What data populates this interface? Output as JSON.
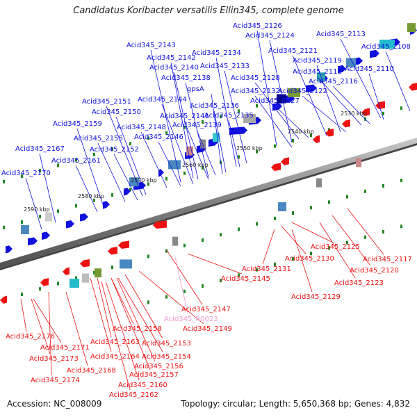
{
  "title": "Candidatus Koribacter versatilis Ellin345, complete genome",
  "footer": {
    "accession": "Accession: NC_008009",
    "topology": "Topology: circular; Length: 5,650,368 bp; Genes: 4,832"
  },
  "colors": {
    "forward_gene": "#1010dd",
    "reverse_gene": "#ee1111",
    "rna": "#ee99cc",
    "backbone": "#808080"
  },
  "kbp_ticks": [
    "2530 kbp",
    "2540 kbp",
    "2550 kbp",
    "2560 kbp",
    "2570 kbp",
    "2580 kbp",
    "2590 kbp"
  ],
  "forward_labels": [
    "Acid345_2126",
    "Acid345_2124",
    "Acid345_2113",
    "Acid345_2108",
    "Acid345_2121",
    "Acid345_2119",
    "Acid345_2110",
    "Acid345_2118",
    "Acid345_2116",
    "Acid345_2122",
    "Acid345_2127",
    "Acid345_2128",
    "Acid345_2132",
    "Acid345_2133",
    "Acid345_2134",
    "Acid345_2143",
    "Acid345_2142",
    "Acid345_2140",
    "Acid345_2138",
    "gpsA",
    "Acid345_2144",
    "Acid345_2136",
    "Acid345_2141",
    "Acid345_2135",
    "Acid345_2139",
    "Acid345_2151",
    "Acid345_2150",
    "Acid345_2148",
    "Acid345_2146",
    "Acid345_2159",
    "Acid345_2155",
    "Acid345_2152",
    "Acid345_2167",
    "Acid345_2161",
    "Acid345_2170"
  ],
  "reverse_labels": [
    "Acid345_2125",
    "Acid345_2117",
    "Acid345_2120",
    "Acid345_2123",
    "Acid345_2130",
    "Acid345_2131",
    "Acid345_2129",
    "Acid345_2145",
    "Acid345_2147",
    "Acid345_2149",
    "Acid345_2158",
    "Acid345_2153",
    "Acid345_2163",
    "Acid345_2154",
    "Acid345_2164",
    "Acid345_2156",
    "Acid345_2157",
    "Acid345_2160",
    "Acid345_2162",
    "Acid345_2176",
    "Acid345_2171",
    "Acid345_2173",
    "Acid345_2168",
    "Acid345_2174"
  ],
  "rna_labels": [
    "Acid345_R0023"
  ]
}
